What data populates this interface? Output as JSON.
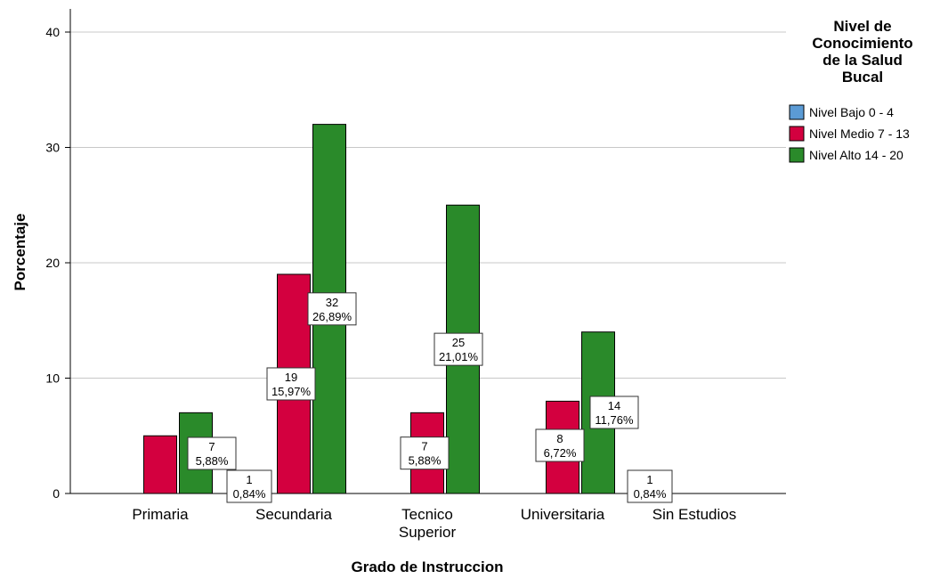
{
  "chart_data": {
    "type": "bar",
    "xlabel": "Grado de Instruccion",
    "ylabel": "Porcentaje",
    "ylim": [
      0,
      42
    ],
    "yticks": [
      0,
      10,
      20,
      30,
      40
    ],
    "grid": true,
    "legend_placement": "top-right",
    "categories": [
      [
        "Primaria"
      ],
      [
        "Secundaria"
      ],
      [
        "Tecnico",
        "Superior"
      ],
      [
        "Universitaria"
      ],
      [
        "Sin Estudios"
      ]
    ],
    "legend": {
      "title": [
        "Nivel de",
        "Conocimiento",
        "de la Salud",
        "Bucal"
      ]
    },
    "series": [
      {
        "name": "Nivel Bajo 0 - 4",
        "color": "#5b9bd5",
        "values": [
          null,
          1,
          null,
          null,
          1
        ],
        "labels": [
          null,
          [
            "1",
            "0,84%"
          ],
          null,
          null,
          [
            "1",
            "0,84%"
          ]
        ]
      },
      {
        "name": "Nivel Medio 7 - 13",
        "color": "#d3003f",
        "values": [
          5,
          19,
          7,
          8,
          null
        ],
        "labels": [
          null,
          [
            "19",
            "15,97%"
          ],
          [
            "7",
            "5,88%"
          ],
          [
            "8",
            "6,72%"
          ],
          null
        ]
      },
      {
        "name": "Nivel Alto 14 - 20",
        "color": "#2a8a2a",
        "values": [
          7,
          32,
          25,
          14,
          null
        ],
        "labels": [
          [
            "7",
            "5,88%"
          ],
          [
            "32",
            "26,89%"
          ],
          [
            "25",
            "21,01%"
          ],
          [
            "14",
            "11,76%"
          ],
          null
        ]
      }
    ]
  }
}
